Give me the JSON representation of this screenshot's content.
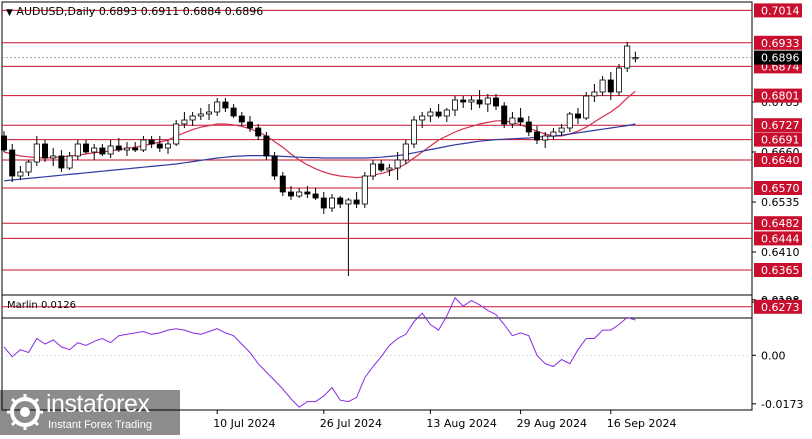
{
  "header": {
    "symbol_label": "AUDUSD,Daily",
    "ohlc": "0.6893 0.6911 0.6884 0.6896"
  },
  "indicator": {
    "label": "Marlin 0.0126"
  },
  "watermark": {
    "brand": "instaforex",
    "tagline": "Instant Forex Trading"
  },
  "colors": {
    "bull_candle": "#ffffff",
    "bear_candle": "#000000",
    "level_line": "#c8102e",
    "level_label_bg": "#c8102e",
    "ma_fast": "#d62f4b",
    "ma_slow": "#2f3aa0",
    "oscillator": "#8a2be2"
  },
  "chart_data": [
    {
      "type": "candlestick",
      "title": "AUDUSD,Daily",
      "ylim": [
        0.6245,
        0.7035
      ],
      "price_ticks": [
        "0.6785",
        "0.6660",
        "0.6535",
        "0.6410",
        "0.6285"
      ],
      "current_price": "0.6896",
      "level_labels": [
        "0.7014",
        "0.6933",
        "0.6874",
        "0.6801",
        "0.6727",
        "0.6691",
        "0.6640",
        "0.6570",
        "0.6482",
        "0.6444",
        "0.6365",
        "0.6273"
      ],
      "levels": [
        0.7014,
        0.6933,
        0.6874,
        0.6801,
        0.6727,
        0.6691,
        0.664,
        0.657,
        0.6482,
        0.6444,
        0.6365,
        0.6273
      ],
      "x_tick_labels": [
        "10 Jul 2024",
        "26 Jul 2024",
        "13 Aug 2024",
        "29 Aug 2024",
        "16 Sep 2024"
      ],
      "x_tick_index": [
        26,
        39,
        52,
        63,
        74
      ],
      "candles": [
        [
          0.67,
          0.6712,
          0.666,
          0.6665
        ],
        [
          0.6665,
          0.668,
          0.6585,
          0.66
        ],
        [
          0.66,
          0.6625,
          0.659,
          0.661
        ],
        [
          0.661,
          0.664,
          0.66,
          0.6635
        ],
        [
          0.6635,
          0.67,
          0.6625,
          0.668
        ],
        [
          0.668,
          0.669,
          0.6635,
          0.6645
        ],
        [
          0.6645,
          0.667,
          0.6625,
          0.665
        ],
        [
          0.665,
          0.6665,
          0.661,
          0.662
        ],
        [
          0.662,
          0.666,
          0.6615,
          0.665
        ],
        [
          0.665,
          0.669,
          0.664,
          0.668
        ],
        [
          0.668,
          0.669,
          0.6655,
          0.666
        ],
        [
          0.666,
          0.668,
          0.664,
          0.667
        ],
        [
          0.667,
          0.668,
          0.665,
          0.6655
        ],
        [
          0.6655,
          0.669,
          0.6645,
          0.6675
        ],
        [
          0.6675,
          0.6695,
          0.666,
          0.6665
        ],
        [
          0.6665,
          0.6685,
          0.665,
          0.667
        ],
        [
          0.667,
          0.6685,
          0.666,
          0.6665
        ],
        [
          0.6665,
          0.67,
          0.666,
          0.669
        ],
        [
          0.669,
          0.67,
          0.667,
          0.668
        ],
        [
          0.668,
          0.67,
          0.666,
          0.667
        ],
        [
          0.667,
          0.669,
          0.6655,
          0.668
        ],
        [
          0.668,
          0.674,
          0.6675,
          0.673
        ],
        [
          0.673,
          0.676,
          0.672,
          0.674
        ],
        [
          0.674,
          0.676,
          0.6725,
          0.675
        ],
        [
          0.675,
          0.677,
          0.674,
          0.6755
        ],
        [
          0.6755,
          0.678,
          0.674,
          0.676
        ],
        [
          0.676,
          0.6795,
          0.675,
          0.6785
        ],
        [
          0.6785,
          0.6795,
          0.676,
          0.677
        ],
        [
          0.677,
          0.678,
          0.6745,
          0.675
        ],
        [
          0.675,
          0.676,
          0.6725,
          0.6735
        ],
        [
          0.6735,
          0.675,
          0.671,
          0.672
        ],
        [
          0.672,
          0.673,
          0.669,
          0.67
        ],
        [
          0.67,
          0.671,
          0.664,
          0.665
        ],
        [
          0.665,
          0.666,
          0.659,
          0.66
        ],
        [
          0.66,
          0.661,
          0.655,
          0.656
        ],
        [
          0.656,
          0.6575,
          0.654,
          0.655
        ],
        [
          0.655,
          0.657,
          0.6545,
          0.656
        ],
        [
          0.656,
          0.6575,
          0.6545,
          0.6555
        ],
        [
          0.6555,
          0.657,
          0.654,
          0.6545
        ],
        [
          0.6545,
          0.656,
          0.6505,
          0.652
        ],
        [
          0.652,
          0.6555,
          0.651,
          0.6545
        ],
        [
          0.6545,
          0.655,
          0.652,
          0.653
        ],
        [
          0.653,
          0.6545,
          0.635,
          0.654
        ],
        [
          0.654,
          0.656,
          0.652,
          0.653
        ],
        [
          0.653,
          0.661,
          0.652,
          0.66
        ],
        [
          0.66,
          0.664,
          0.659,
          0.663
        ],
        [
          0.663,
          0.664,
          0.661,
          0.6615
        ],
        [
          0.6615,
          0.663,
          0.66,
          0.662
        ],
        [
          0.662,
          0.666,
          0.659,
          0.664
        ],
        [
          0.664,
          0.669,
          0.663,
          0.668
        ],
        [
          0.668,
          0.675,
          0.667,
          0.674
        ],
        [
          0.674,
          0.676,
          0.672,
          0.675
        ],
        [
          0.675,
          0.677,
          0.6735,
          0.676
        ],
        [
          0.676,
          0.678,
          0.6745,
          0.675
        ],
        [
          0.675,
          0.677,
          0.6735,
          0.6765
        ],
        [
          0.6765,
          0.68,
          0.675,
          0.679
        ],
        [
          0.679,
          0.68,
          0.677,
          0.6785
        ],
        [
          0.6785,
          0.68,
          0.6765,
          0.679
        ],
        [
          0.679,
          0.6815,
          0.677,
          0.678
        ],
        [
          0.678,
          0.6805,
          0.676,
          0.6795
        ],
        [
          0.6795,
          0.6805,
          0.6765,
          0.6775
        ],
        [
          0.6775,
          0.6785,
          0.672,
          0.673
        ],
        [
          0.673,
          0.676,
          0.672,
          0.6745
        ],
        [
          0.6745,
          0.677,
          0.6725,
          0.6735
        ],
        [
          0.6735,
          0.675,
          0.67,
          0.671
        ],
        [
          0.671,
          0.6725,
          0.668,
          0.669
        ],
        [
          0.669,
          0.671,
          0.667,
          0.67
        ],
        [
          0.67,
          0.672,
          0.669,
          0.671
        ],
        [
          0.671,
          0.673,
          0.67,
          0.672
        ],
        [
          0.672,
          0.676,
          0.671,
          0.6755
        ],
        [
          0.6755,
          0.677,
          0.673,
          0.6745
        ],
        [
          0.6745,
          0.681,
          0.674,
          0.68
        ],
        [
          0.68,
          0.683,
          0.6785,
          0.681
        ],
        [
          0.681,
          0.685,
          0.68,
          0.684
        ],
        [
          0.684,
          0.686,
          0.679,
          0.681
        ],
        [
          0.681,
          0.688,
          0.68,
          0.687
        ],
        [
          0.687,
          0.6935,
          0.686,
          0.6925
        ],
        [
          0.6893,
          0.6911,
          0.6884,
          0.6896
        ]
      ],
      "series": [
        {
          "kind": "ma_fast",
          "values": [
            0.666,
            0.6655,
            0.665,
            0.6648,
            0.6646,
            0.6645,
            0.6646,
            0.6648,
            0.665,
            0.6652,
            0.6655,
            0.6658,
            0.666,
            0.6663,
            0.6666,
            0.6669,
            0.6672,
            0.6676,
            0.668,
            0.6685,
            0.669,
            0.67,
            0.6708,
            0.6716,
            0.6722,
            0.6726,
            0.673,
            0.673,
            0.6728,
            0.6724,
            0.6718,
            0.671,
            0.67,
            0.6686,
            0.6672,
            0.6655,
            0.664,
            0.6628,
            0.6618,
            0.661,
            0.6604,
            0.66,
            0.6598,
            0.6596,
            0.6598,
            0.6602,
            0.6606,
            0.6612,
            0.662,
            0.663,
            0.6645,
            0.666,
            0.6675,
            0.669,
            0.67,
            0.671,
            0.6718,
            0.6724,
            0.673,
            0.6734,
            0.6738,
            0.6738,
            0.6734,
            0.6728,
            0.672,
            0.6712,
            0.6705,
            0.67,
            0.67,
            0.6705,
            0.6712,
            0.6722,
            0.6735,
            0.6748,
            0.676,
            0.6775,
            0.6795,
            0.6812
          ]
        },
        {
          "kind": "ma_slow",
          "values": [
            0.6588,
            0.659,
            0.6592,
            0.6594,
            0.6596,
            0.6598,
            0.66,
            0.6602,
            0.6604,
            0.6606,
            0.6608,
            0.661,
            0.6612,
            0.6614,
            0.6616,
            0.6618,
            0.662,
            0.6622,
            0.6624,
            0.6626,
            0.6628,
            0.663,
            0.6633,
            0.6636,
            0.6639,
            0.6642,
            0.6645,
            0.6647,
            0.6649,
            0.665,
            0.6651,
            0.6651,
            0.6651,
            0.665,
            0.6649,
            0.6648,
            0.6647,
            0.6646,
            0.6646,
            0.6645,
            0.6645,
            0.6645,
            0.6645,
            0.6645,
            0.6645,
            0.6646,
            0.6647,
            0.6649,
            0.6651,
            0.6654,
            0.6658,
            0.6662,
            0.6666,
            0.667,
            0.6674,
            0.6678,
            0.6681,
            0.6684,
            0.6687,
            0.6689,
            0.6691,
            0.6692,
            0.6693,
            0.6694,
            0.6695,
            0.6697,
            0.6699,
            0.67,
            0.6702,
            0.6705,
            0.6708,
            0.6711,
            0.6714,
            0.6717,
            0.672,
            0.6723,
            0.6726,
            0.673
          ]
        }
      ]
    },
    {
      "type": "line",
      "title": "Marlin 0.0126",
      "ylim": [
        -0.0195,
        0.0215
      ],
      "y_ticks": [
        "0.0198",
        "0.00",
        "-0.0173"
      ],
      "series": [
        {
          "values": [
            0.003,
            -0.0005,
            0.002,
            0.001,
            0.006,
            0.004,
            0.0055,
            0.003,
            0.002,
            0.0045,
            0.0035,
            0.005,
            0.006,
            0.0045,
            0.007,
            0.0075,
            0.008,
            0.0085,
            0.0075,
            0.008,
            0.009,
            0.0095,
            0.009,
            0.008,
            0.0075,
            0.0085,
            0.0095,
            0.008,
            0.007,
            0.004,
            0.001,
            -0.003,
            -0.006,
            -0.009,
            -0.012,
            -0.0155,
            -0.0185,
            -0.0165,
            -0.0165,
            -0.0145,
            -0.0115,
            -0.016,
            -0.0165,
            -0.015,
            -0.008,
            -0.004,
            -0.0005,
            0.0035,
            0.006,
            0.0075,
            0.012,
            0.015,
            0.011,
            0.009,
            0.014,
            0.0205,
            0.0175,
            0.0195,
            0.018,
            0.016,
            0.0145,
            0.011,
            0.007,
            0.008,
            0.007,
            0.0,
            -0.003,
            -0.004,
            -0.0015,
            -0.003,
            0.002,
            0.006,
            0.006,
            0.009,
            0.009,
            0.011,
            0.0135,
            0.0126
          ]
        }
      ]
    }
  ]
}
